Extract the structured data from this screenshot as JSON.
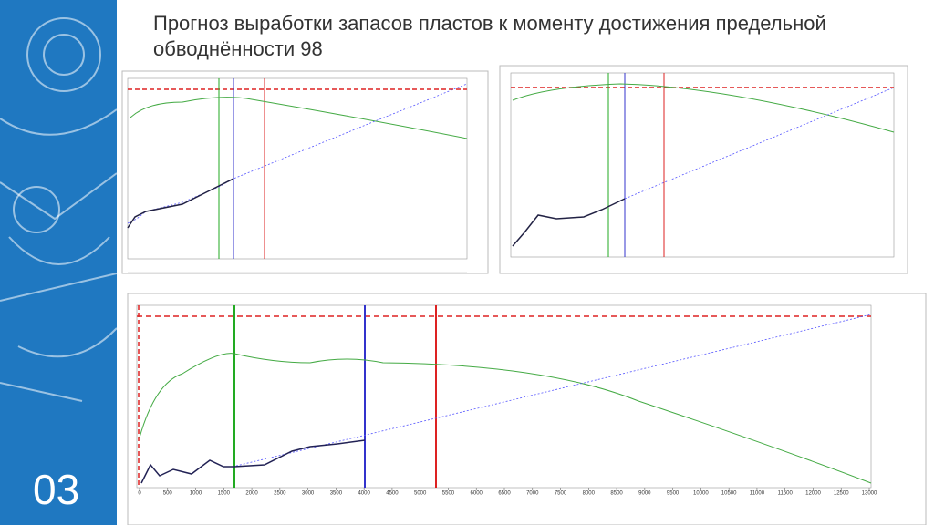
{
  "header": {
    "title": "Прогноз выработки запасов пластов к моменту достижения предельной обводнённости 98"
  },
  "slide_number": "03",
  "bottom_chart": {
    "xticks": [
      0,
      500,
      1000,
      1500,
      2000,
      2500,
      3000,
      3500,
      4000,
      4500,
      5000,
      5500,
      6000,
      6500,
      7000,
      7500,
      8000,
      8500,
      9000,
      9500,
      10000,
      10500,
      11000,
      11500,
      12000,
      12500,
      13000
    ]
  }
}
